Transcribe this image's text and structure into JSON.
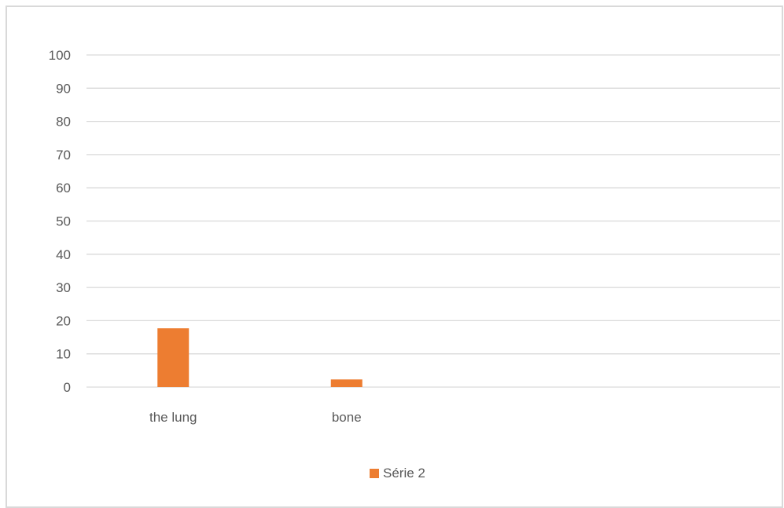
{
  "chart_data": {
    "type": "bar",
    "title": "",
    "xlabel": "",
    "ylabel": "",
    "categories": [
      "the lung",
      "bone",
      "",
      ""
    ],
    "series": [
      {
        "name": "Série 2",
        "values": [
          17.7,
          2.3,
          null,
          null
        ],
        "color": "#ED7D31"
      }
    ],
    "ylim": [
      0,
      100
    ],
    "yticks": [
      0,
      10,
      20,
      30,
      40,
      50,
      60,
      70,
      80,
      90,
      100
    ],
    "grid": true,
    "legend_position": "bottom"
  }
}
